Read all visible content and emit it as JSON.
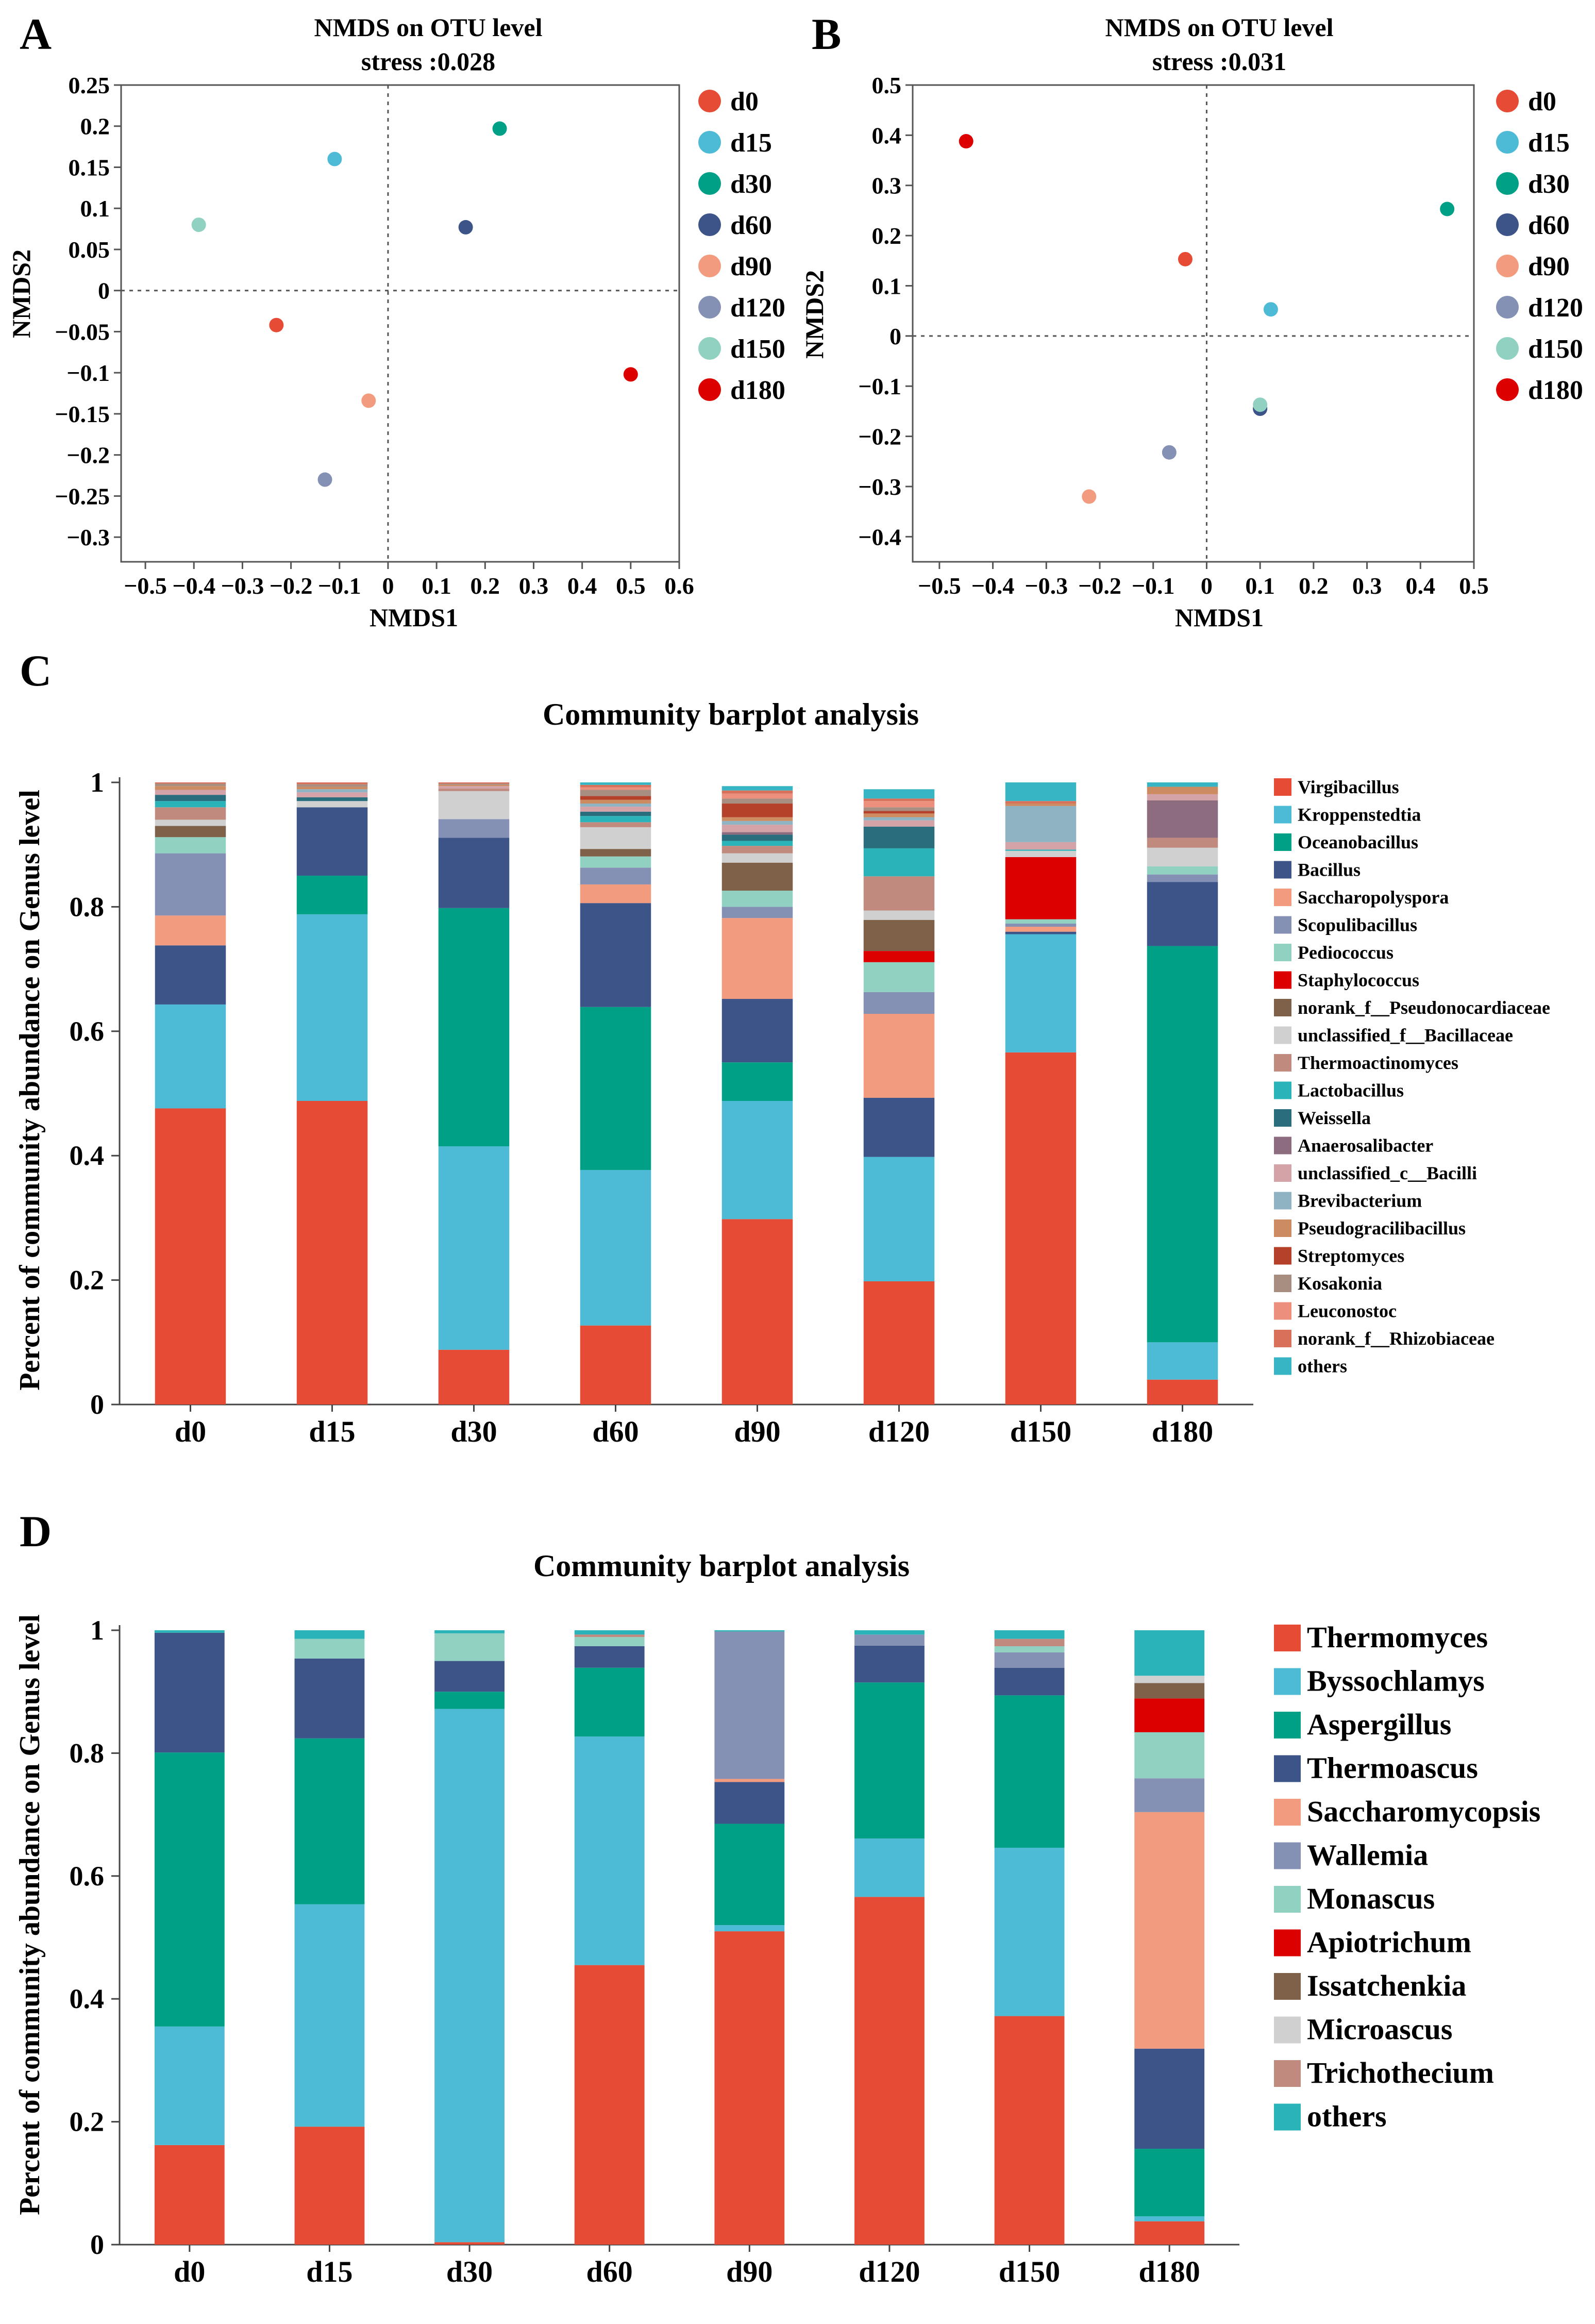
{
  "panels": {
    "a": "A",
    "b": "B",
    "c": "C",
    "d": "D"
  },
  "chart_data": [
    {
      "id": "A",
      "type": "scatter",
      "title": "NMDS on OTU level",
      "subtitle": "stress :0.028",
      "xlabel": "NMDS1",
      "ylabel": "NMDS2",
      "xlim": [
        -0.55,
        0.6
      ],
      "ylim": [
        -0.33,
        0.25
      ],
      "xticks": [
        -0.5,
        -0.4,
        -0.3,
        -0.2,
        -0.1,
        0,
        0.1,
        0.2,
        0.3,
        0.4,
        0.5,
        0.6
      ],
      "yticks": [
        0.25,
        0.2,
        0.15,
        0.1,
        0.05,
        0,
        -0.05,
        -0.1,
        -0.15,
        -0.2,
        -0.25,
        -0.3
      ],
      "points": [
        {
          "name": "d0",
          "x": -0.23,
          "y": -0.042,
          "color": "#e64b35"
        },
        {
          "name": "d15",
          "x": -0.11,
          "y": 0.16,
          "color": "#4dbbd5"
        },
        {
          "name": "d30",
          "x": 0.23,
          "y": 0.197,
          "color": "#00a087"
        },
        {
          "name": "d60",
          "x": 0.16,
          "y": 0.077,
          "color": "#3c5488"
        },
        {
          "name": "d90",
          "x": -0.04,
          "y": -0.134,
          "color": "#f39b7f"
        },
        {
          "name": "d120",
          "x": -0.13,
          "y": -0.23,
          "color": "#8491b4"
        },
        {
          "name": "d150",
          "x": -0.39,
          "y": 0.08,
          "color": "#91d1c2"
        },
        {
          "name": "d180",
          "x": 0.5,
          "y": -0.102,
          "color": "#dc0000"
        }
      ]
    },
    {
      "id": "B",
      "type": "scatter",
      "title": "NMDS on OTU level",
      "subtitle": "stress :0.031",
      "xlabel": "NMDS1",
      "ylabel": "NMDS2",
      "xlim": [
        -0.55,
        0.5
      ],
      "ylim": [
        -0.45,
        0.5
      ],
      "xticks": [
        -0.5,
        -0.4,
        -0.3,
        -0.2,
        -0.1,
        0,
        0.1,
        0.2,
        0.3,
        0.4,
        0.5
      ],
      "yticks": [
        0.5,
        0.4,
        0.3,
        0.2,
        0.1,
        0,
        -0.1,
        -0.2,
        -0.3,
        -0.4
      ],
      "points": [
        {
          "name": "d0",
          "x": -0.04,
          "y": 0.153,
          "color": "#e64b35"
        },
        {
          "name": "d15",
          "x": 0.12,
          "y": 0.053,
          "color": "#4dbbd5"
        },
        {
          "name": "d30",
          "x": 0.45,
          "y": 0.253,
          "color": "#00a087"
        },
        {
          "name": "d60",
          "x": 0.1,
          "y": -0.145,
          "color": "#3c5488"
        },
        {
          "name": "d90",
          "x": -0.22,
          "y": -0.32,
          "color": "#f39b7f"
        },
        {
          "name": "d120",
          "x": -0.07,
          "y": -0.232,
          "color": "#8491b4"
        },
        {
          "name": "d150",
          "x": 0.1,
          "y": -0.137,
          "color": "#91d1c2"
        },
        {
          "name": "d180",
          "x": -0.45,
          "y": 0.388,
          "color": "#dc0000"
        }
      ]
    },
    {
      "id": "C",
      "type": "bar",
      "stacked": true,
      "title": "Community barplot analysis",
      "xlabel": "",
      "ylabel": "Percent of community abundance on Genus level",
      "ylim": [
        0,
        1
      ],
      "yticks": [
        0,
        0.2,
        0.4,
        0.6,
        0.8,
        1
      ],
      "categories": [
        "d0",
        "d15",
        "d30",
        "d60",
        "d90",
        "d120",
        "d150",
        "d180"
      ],
      "series": [
        {
          "name": "Virgibacillus",
          "color": "#e64b35",
          "values": [
            0.476,
            0.488,
            0.088,
            0.127,
            0.298,
            0.198,
            0.566,
            0.04
          ]
        },
        {
          "name": "Kroppenstedtia",
          "color": "#4dbbd5",
          "values": [
            0.167,
            0.3,
            0.327,
            0.25,
            0.19,
            0.2,
            0.19,
            0.06
          ]
        },
        {
          "name": "Oceanobacillus",
          "color": "#00a087",
          "values": [
            0,
            0.062,
            0.383,
            0.262,
            0.062,
            0,
            0,
            0.637
          ]
        },
        {
          "name": "Bacillus",
          "color": "#3c5488",
          "values": [
            0.095,
            0.11,
            0.113,
            0.167,
            0.102,
            0.095,
            0.004,
            0.103
          ]
        },
        {
          "name": "Saccharopolyspora",
          "color": "#f39b7f",
          "values": [
            0.048,
            0,
            0,
            0.03,
            0.13,
            0.135,
            0.008,
            0
          ]
        },
        {
          "name": "Scopulibacillus",
          "color": "#8491b4",
          "values": [
            0.1,
            0,
            0.03,
            0.027,
            0.018,
            0.035,
            0.005,
            0.012
          ]
        },
        {
          "name": "Pediococcus",
          "color": "#91d1c2",
          "values": [
            0.026,
            0,
            0,
            0.018,
            0.026,
            0.048,
            0.007,
            0.013
          ]
        },
        {
          "name": "Staphylococcus",
          "color": "#dc0000",
          "values": [
            0,
            0,
            0,
            0,
            0,
            0.018,
            0.1,
            0
          ]
        },
        {
          "name": "norank_f__Pseudonocardiaceae",
          "color": "#7e6148",
          "values": [
            0.018,
            0,
            0,
            0.012,
            0.045,
            0.05,
            0,
            0
          ]
        },
        {
          "name": "unclassified_f__Bacillaceae",
          "color": "#d0d0d0",
          "values": [
            0.01,
            0.01,
            0.045,
            0.035,
            0.015,
            0.015,
            0.01,
            0.03
          ]
        },
        {
          "name": "Thermoactinomyces",
          "color": "#c08a7e",
          "values": [
            0.02,
            0,
            0.004,
            0.008,
            0.012,
            0.055,
            0,
            0.016
          ]
        },
        {
          "name": "Lactobacillus",
          "color": "#2ab3b8",
          "values": [
            0.01,
            0,
            0,
            0.01,
            0.008,
            0.045,
            0.002,
            0
          ]
        },
        {
          "name": "Weissella",
          "color": "#2a6e7d",
          "values": [
            0.01,
            0.006,
            0,
            0.007,
            0.01,
            0.035,
            0,
            0
          ]
        },
        {
          "name": "Anaerosalibacter",
          "color": "#8e6c80",
          "values": [
            0,
            0,
            0,
            0,
            0.004,
            0,
            0,
            0.06
          ]
        },
        {
          "name": "unclassified_c__Bacilli",
          "color": "#d4a3a8",
          "values": [
            0.008,
            0.008,
            0.004,
            0.008,
            0.012,
            0.01,
            0.012,
            0.01
          ]
        },
        {
          "name": "Brevibacterium",
          "color": "#8fb3c3",
          "values": [
            0,
            0.005,
            0,
            0.005,
            0.006,
            0.005,
            0.058,
            0
          ]
        },
        {
          "name": "Pseudogracilibacillus",
          "color": "#cd8b62",
          "values": [
            0.006,
            0.004,
            0.002,
            0.006,
            0.006,
            0.006,
            0.004,
            0.012
          ]
        },
        {
          "name": "Streptomyces",
          "color": "#b5412a",
          "values": [
            0,
            0,
            0,
            0.006,
            0.022,
            0.004,
            0,
            0
          ]
        },
        {
          "name": "Kosakonia",
          "color": "#a88e80",
          "values": [
            0.004,
            0.004,
            0.002,
            0.01,
            0.008,
            0.006,
            0,
            0
          ]
        },
        {
          "name": "Leuconostoc",
          "color": "#ec8f7d",
          "values": [
            0,
            0,
            0,
            0.004,
            0.008,
            0.01,
            0,
            0
          ]
        },
        {
          "name": "norank_f__Rhizobiaceae",
          "color": "#d9715a",
          "values": [
            0.002,
            0.003,
            0.002,
            0.004,
            0.005,
            0.004,
            0.004,
            0
          ]
        },
        {
          "name": "others",
          "color": "#37b5c4",
          "values": [
            0.0,
            0.0,
            0.0,
            0.004,
            0.007,
            0.015,
            0.03,
            0.007
          ]
        }
      ]
    },
    {
      "id": "D",
      "type": "bar",
      "stacked": true,
      "title": "Community barplot analysis",
      "xlabel": "",
      "ylabel": "Percent of community abundance on Genus level",
      "ylim": [
        0,
        1
      ],
      "yticks": [
        0,
        0.2,
        0.4,
        0.6,
        0.8,
        1
      ],
      "categories": [
        "d0",
        "d15",
        "d30",
        "d60",
        "d90",
        "d120",
        "d150",
        "d180"
      ],
      "series": [
        {
          "name": "Thermomyces",
          "color": "#e64b35",
          "values": [
            0.162,
            0.192,
            0.004,
            0.455,
            0.51,
            0.566,
            0.372,
            0.038
          ]
        },
        {
          "name": "Byssochlamys",
          "color": "#4dbbd5",
          "values": [
            0.193,
            0.362,
            0.868,
            0.372,
            0.01,
            0.095,
            0.274,
            0.008
          ]
        },
        {
          "name": "Aspergillus",
          "color": "#00a087",
          "values": [
            0.446,
            0.27,
            0.028,
            0.112,
            0.165,
            0.254,
            0.248,
            0.11
          ]
        },
        {
          "name": "Thermoascus",
          "color": "#3c5488",
          "values": [
            0.195,
            0.13,
            0.05,
            0.035,
            0.068,
            0.06,
            0.045,
            0.163
          ]
        },
        {
          "name": "Saccharomycopsis",
          "color": "#f39b7f",
          "values": [
            0,
            0,
            0,
            0,
            0.005,
            0,
            0,
            0.385
          ]
        },
        {
          "name": "Wallemia",
          "color": "#8491b4",
          "values": [
            0,
            0,
            0,
            0,
            0.24,
            0.018,
            0.025,
            0.055
          ]
        },
        {
          "name": "Monascus",
          "color": "#91d1c2",
          "values": [
            0,
            0.032,
            0.045,
            0.015,
            0,
            0,
            0.01,
            0.075
          ]
        },
        {
          "name": "Apiotrichum",
          "color": "#dc0000",
          "values": [
            0,
            0,
            0,
            0,
            0,
            0,
            0,
            0.055
          ]
        },
        {
          "name": "Issatchenkia",
          "color": "#7e6148",
          "values": [
            0,
            0,
            0,
            0,
            0,
            0,
            0,
            0.025
          ]
        },
        {
          "name": "Microascus",
          "color": "#d0d0d0",
          "values": [
            0,
            0,
            0,
            0,
            0,
            0,
            0,
            0.012
          ]
        },
        {
          "name": "Trichothecium",
          "color": "#c08a7e",
          "values": [
            0,
            0,
            0,
            0.004,
            0,
            0,
            0.012,
            0
          ]
        },
        {
          "name": "others",
          "color": "#2ab3b8",
          "values": [
            0.004,
            0.014,
            0.005,
            0.007,
            0.002,
            0.007,
            0.014,
            0.074
          ]
        }
      ]
    }
  ]
}
